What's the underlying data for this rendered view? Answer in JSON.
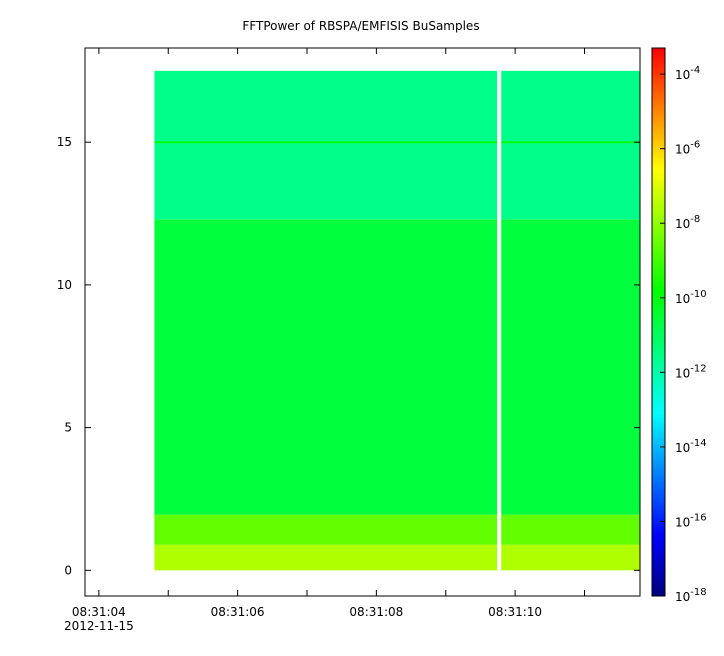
{
  "chart_data": {
    "type": "heatmap",
    "title": "FFTPower of RBSPA/EMFISIS  BuSamples",
    "xlabel": "",
    "ylabel": "",
    "x_ticks": [
      {
        "t": 0,
        "label": "08:31:04",
        "sublabel": "2012-11-15"
      },
      {
        "t": 2,
        "label": "08:31:06"
      },
      {
        "t": 4,
        "label": "08:31:08"
      },
      {
        "t": 6,
        "label": "08:31:10"
      }
    ],
    "x_minor_ticks": [
      1,
      3,
      5,
      7
    ],
    "xlim": [
      -0.2,
      7.8
    ],
    "y_ticks": [
      0,
      5,
      10,
      15
    ],
    "ylim": [
      -0.9,
      18.3
    ],
    "data_extent": {
      "t_start": 0.8,
      "t_end": 7.8,
      "f_min": 0.0,
      "f_max": 17.5
    },
    "data_gap": {
      "t_start": 5.74,
      "t_end": 5.8
    },
    "bands": [
      {
        "f_from": 0.0,
        "f_to": 0.9,
        "log_power": -7.6
      },
      {
        "f_from": 0.9,
        "f_to": 1.95,
        "log_power": -8.6
      },
      {
        "f_from": 1.95,
        "f_to": 12.3,
        "log_power": -10.6
      },
      {
        "f_from": 12.3,
        "f_to": 17.5,
        "log_power": -11.6
      }
    ],
    "lines": [
      {
        "f": 15.0,
        "log_power": -10.0
      }
    ],
    "colorbar": {
      "scale": "log",
      "range": [
        -18,
        -3.3
      ],
      "ticks": [
        {
          "exp": -4,
          "label": "10",
          "sup": "-4"
        },
        {
          "exp": -6,
          "label": "10",
          "sup": "-6"
        },
        {
          "exp": -8,
          "label": "10",
          "sup": "-8"
        },
        {
          "exp": -10,
          "label": "10",
          "sup": "-10"
        },
        {
          "exp": -12,
          "label": "10",
          "sup": "-12"
        },
        {
          "exp": -14,
          "label": "10",
          "sup": "-14"
        },
        {
          "exp": -16,
          "label": "10",
          "sup": "-16"
        },
        {
          "exp": -18,
          "label": "10",
          "sup": "-18"
        }
      ],
      "colormap": [
        "#00007f",
        "#0000ff",
        "#0080ff",
        "#00ffff",
        "#00ff80",
        "#00ff00",
        "#80ff00",
        "#ffff00",
        "#ff8000",
        "#ff0000"
      ]
    }
  }
}
